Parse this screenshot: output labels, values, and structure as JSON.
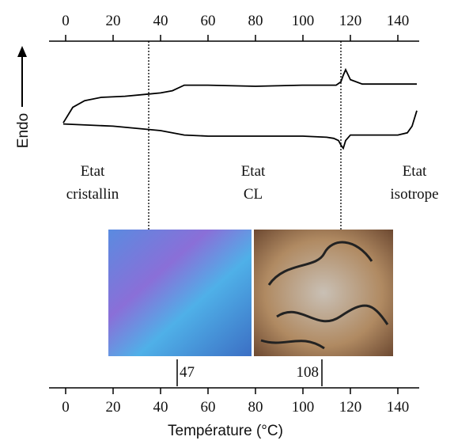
{
  "chart_data": {
    "type": "line",
    "x_label": "Température (°C)",
    "y_label": "Endo",
    "xlim": [
      -7,
      149
    ],
    "xticks": [
      0,
      20,
      40,
      60,
      80,
      100,
      120,
      140
    ],
    "ylim": [
      0,
      10
    ],
    "series": [
      {
        "color": "#000000",
        "x": [
          -1,
          3,
          8,
          15,
          25,
          35,
          40,
          45,
          50,
          60,
          80,
          100,
          110,
          114,
          116,
          117,
          118,
          120,
          125,
          140,
          148
        ],
        "values": [
          3.2,
          4.6,
          5.2,
          5.5,
          5.6,
          5.8,
          5.9,
          6.1,
          6.6,
          6.6,
          6.5,
          6.6,
          6.6,
          6.6,
          6.9,
          7.5,
          8.0,
          7.1,
          6.7,
          6.7,
          6.7
        ]
      },
      {
        "color": "#000000",
        "x": [
          -1,
          20,
          40,
          50,
          60,
          80,
          100,
          110,
          113,
          115,
          116,
          117,
          118,
          120,
          130,
          140,
          144,
          146,
          148
        ],
        "values": [
          3.1,
          2.9,
          2.5,
          2.1,
          2.0,
          2.0,
          2.0,
          1.9,
          1.8,
          1.6,
          1.2,
          0.9,
          1.6,
          2.1,
          2.1,
          2.1,
          2.3,
          2.9,
          4.3
        ]
      }
    ],
    "transitions": [
      35,
      116
    ],
    "annotations": [
      [
        "Etat",
        "cristallin"
      ],
      [
        "Etat",
        "CL"
      ],
      [
        "Etat",
        "isotrope"
      ]
    ],
    "markers": [
      47,
      108
    ]
  }
}
